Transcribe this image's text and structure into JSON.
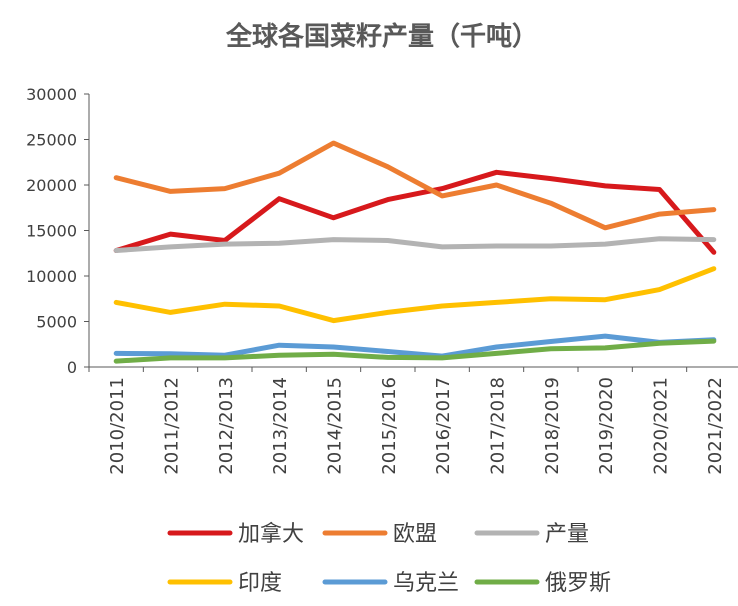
{
  "chart_data": {
    "type": "line",
    "title": "全球各国菜籽产量（千吨）",
    "xlabel": "",
    "ylabel": "",
    "ylim": [
      0,
      30000
    ],
    "yticks": [
      0,
      5000,
      10000,
      15000,
      20000,
      25000,
      30000
    ],
    "grid": false,
    "legend_position": "bottom",
    "categories": [
      "2010/2011",
      "2011/2012",
      "2012/2013",
      "2013/2014",
      "2014/2015",
      "2015/2016",
      "2016/2017",
      "2017/2018",
      "2018/2019",
      "2019/2020",
      "2020/2021",
      "2021/2022"
    ],
    "series": [
      {
        "name": "加拿大",
        "color": "#d7191c",
        "values": [
          12800,
          14600,
          13900,
          18500,
          16400,
          18400,
          19600,
          21400,
          20700,
          19900,
          19500,
          12600
        ]
      },
      {
        "name": "欧盟",
        "color": "#ed7d31",
        "values": [
          20800,
          19300,
          19600,
          21300,
          24600,
          22000,
          18800,
          20000,
          18000,
          15300,
          16800,
          17300
        ]
      },
      {
        "name": "产量",
        "color": "#b3b3b3",
        "values": [
          12800,
          13200,
          13500,
          13600,
          14000,
          13900,
          13200,
          13300,
          13300,
          13500,
          14100,
          14000
        ]
      },
      {
        "name": "印度",
        "color": "#ffc000",
        "values": [
          7100,
          6000,
          6900,
          6700,
          5100,
          6000,
          6700,
          7100,
          7500,
          7400,
          8500,
          10800
        ]
      },
      {
        "name": "乌克兰",
        "color": "#5b9bd5",
        "values": [
          1500,
          1450,
          1300,
          2400,
          2200,
          1700,
          1200,
          2200,
          2800,
          3400,
          2700,
          3000
        ]
      },
      {
        "name": "俄罗斯",
        "color": "#70ad47",
        "values": [
          650,
          1000,
          1000,
          1300,
          1400,
          1050,
          1000,
          1500,
          2000,
          2100,
          2600,
          2850
        ]
      }
    ]
  }
}
